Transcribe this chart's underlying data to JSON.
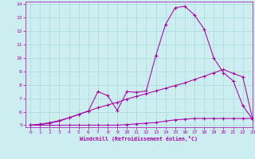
{
  "xlabel": "Windchill (Refroidissement éolien,°C)",
  "xlim": [
    -0.5,
    23
  ],
  "ylim": [
    4.85,
    14.2
  ],
  "xticks": [
    0,
    1,
    2,
    3,
    4,
    5,
    6,
    7,
    8,
    9,
    10,
    11,
    12,
    13,
    14,
    15,
    16,
    17,
    18,
    19,
    20,
    21,
    22,
    23
  ],
  "yticks": [
    5,
    6,
    7,
    8,
    9,
    10,
    11,
    12,
    13,
    14
  ],
  "bg_color": "#cceef0",
  "grid_color": "#aad8dc",
  "line_color": "#aa00aa",
  "line1_x": [
    0,
    1,
    2,
    3,
    4,
    5,
    6,
    7,
    8,
    9,
    10,
    11,
    12,
    13,
    14,
    15,
    16,
    17,
    18,
    19,
    20,
    21,
    22,
    23
  ],
  "line1_y": [
    5.0,
    5.05,
    5.15,
    5.3,
    5.55,
    5.8,
    6.05,
    7.5,
    7.2,
    6.1,
    7.5,
    7.45,
    7.55,
    10.2,
    12.5,
    13.75,
    13.85,
    13.2,
    12.15,
    10.0,
    8.9,
    8.3,
    6.45,
    5.45
  ],
  "line2_x": [
    0,
    1,
    2,
    3,
    4,
    5,
    6,
    7,
    8,
    9,
    10,
    11,
    12,
    13,
    14,
    15,
    16,
    17,
    18,
    19,
    20,
    21,
    22,
    23
  ],
  "line2_y": [
    5.0,
    5.08,
    5.18,
    5.35,
    5.55,
    5.8,
    6.05,
    6.3,
    6.5,
    6.7,
    6.95,
    7.15,
    7.35,
    7.55,
    7.75,
    7.95,
    8.15,
    8.4,
    8.65,
    8.9,
    9.15,
    8.85,
    8.6,
    5.5
  ],
  "line3_x": [
    0,
    1,
    2,
    3,
    4,
    5,
    6,
    7,
    8,
    9,
    10,
    11,
    12,
    13,
    14,
    15,
    16,
    17,
    18,
    19,
    20,
    21,
    22,
    23
  ],
  "line3_y": [
    5.0,
    5.0,
    5.0,
    5.0,
    5.0,
    5.0,
    5.0,
    5.0,
    5.0,
    5.0,
    5.05,
    5.1,
    5.15,
    5.2,
    5.3,
    5.4,
    5.45,
    5.5,
    5.5,
    5.5,
    5.5,
    5.5,
    5.5,
    5.5
  ]
}
